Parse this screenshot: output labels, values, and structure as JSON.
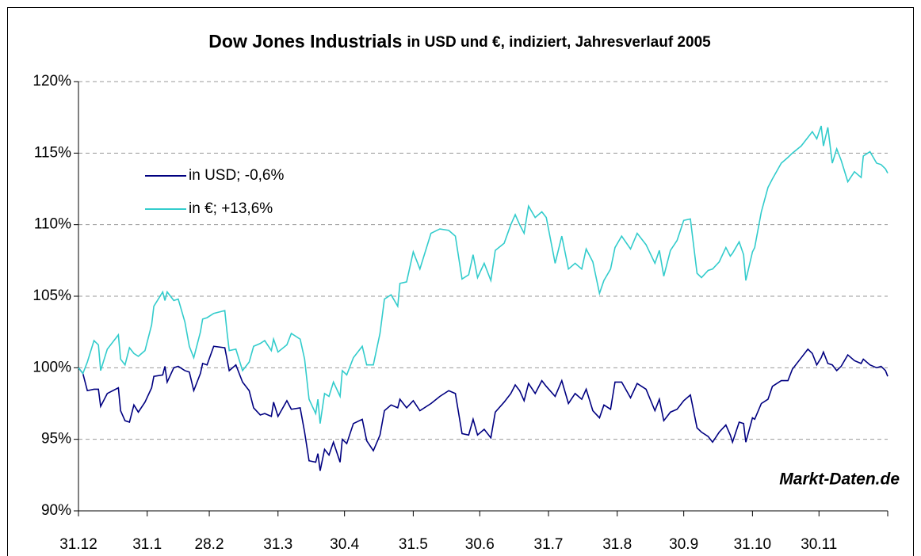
{
  "chart_data": {
    "type": "line",
    "title": "Dow Jones Industrials",
    "subtitle": "in USD und €, indiziert, Jahresverlauf 2005",
    "annotation": "Markt-Daten.de",
    "legend": "upper left",
    "grid": true,
    "xlim": [
      0,
      365
    ],
    "xticks": [
      {
        "value": 0,
        "label": "31.12"
      },
      {
        "value": 31,
        "label": "31.1"
      },
      {
        "value": 59,
        "label": "28.2"
      },
      {
        "value": 90,
        "label": "31.3"
      },
      {
        "value": 120,
        "label": "30.4"
      },
      {
        "value": 151,
        "label": "31.5"
      },
      {
        "value": 181,
        "label": "30.6"
      },
      {
        "value": 212,
        "label": "31.7"
      },
      {
        "value": 243,
        "label": "31.8"
      },
      {
        "value": 273,
        "label": "30.9"
      },
      {
        "value": 304,
        "label": "31.10"
      },
      {
        "value": 334,
        "label": "30.11"
      }
    ],
    "ylim": [
      90,
      120
    ],
    "yticks": [
      {
        "value": 90,
        "label": "90%"
      },
      {
        "value": 95,
        "label": "95%"
      },
      {
        "value": 100,
        "label": "100%"
      },
      {
        "value": 105,
        "label": "105%"
      },
      {
        "value": 110,
        "label": "110%"
      },
      {
        "value": 115,
        "label": "115%"
      },
      {
        "value": 120,
        "label": "120%"
      }
    ],
    "x": [
      0,
      2,
      4,
      7,
      9,
      10,
      13,
      18,
      19,
      21,
      23,
      25,
      27,
      30,
      33,
      34,
      38,
      39,
      40,
      43,
      45,
      48,
      50,
      52,
      55,
      56,
      58,
      61,
      66,
      67,
      68,
      71,
      74,
      77,
      79,
      82,
      84,
      87,
      88,
      90,
      94,
      96,
      100,
      102,
      104,
      107,
      108,
      109,
      111,
      113,
      115,
      118,
      119,
      121,
      124,
      128,
      130,
      133,
      136,
      138,
      141,
      144,
      145,
      148,
      151,
      154,
      159,
      163,
      167,
      170,
      173,
      176,
      178,
      180,
      183,
      186,
      188,
      192,
      195,
      197,
      199,
      201,
      203,
      206,
      209,
      211,
      215,
      218,
      221,
      224,
      227,
      229,
      232,
      235,
      237,
      240,
      242,
      245,
      249,
      252,
      256,
      260,
      262,
      264,
      267,
      270,
      273,
      276,
      279,
      281,
      284,
      286,
      289,
      292,
      294,
      295,
      298,
      300,
      301,
      304,
      305,
      308,
      311,
      313,
      317,
      320,
      322,
      326,
      329,
      331,
      333,
      335,
      336,
      338,
      340,
      342,
      344,
      347,
      350,
      353,
      354,
      357,
      360,
      362,
      364,
      365
    ],
    "series": [
      {
        "name": "in USD; -0,6%",
        "color": "#000080",
        "values": [
          100.0,
          99.6,
          98.4,
          98.5,
          98.5,
          97.3,
          98.2,
          98.6,
          97.0,
          96.3,
          96.2,
          97.4,
          96.9,
          97.6,
          98.6,
          99.4,
          99.5,
          100.1,
          99.0,
          100.0,
          100.1,
          99.8,
          99.7,
          98.4,
          99.6,
          100.3,
          100.2,
          101.5,
          101.4,
          100.6,
          99.8,
          100.2,
          99.0,
          98.4,
          97.2,
          96.7,
          96.8,
          96.6,
          97.6,
          96.6,
          97.7,
          97.1,
          97.2,
          95.5,
          93.5,
          93.4,
          94.0,
          92.8,
          94.3,
          93.9,
          94.8,
          93.4,
          95.0,
          94.7,
          96.1,
          96.4,
          94.9,
          94.2,
          95.3,
          97.0,
          97.4,
          97.2,
          97.8,
          97.2,
          97.7,
          97.0,
          97.5,
          98.0,
          98.4,
          98.2,
          95.4,
          95.3,
          96.4,
          95.3,
          95.7,
          95.1,
          96.9,
          97.6,
          98.2,
          98.8,
          98.4,
          97.7,
          98.9,
          98.2,
          99.1,
          98.7,
          98.0,
          99.1,
          97.5,
          98.2,
          97.8,
          98.5,
          97.0,
          96.5,
          97.4,
          97.1,
          99.0,
          99.0,
          97.9,
          98.9,
          98.5,
          97.0,
          97.8,
          96.3,
          96.9,
          97.1,
          97.7,
          98.1,
          95.8,
          95.5,
          95.2,
          94.8,
          95.5,
          96.0,
          95.3,
          94.8,
          96.2,
          96.1,
          94.8,
          96.5,
          96.4,
          97.5,
          97.8,
          98.7,
          99.1,
          99.1,
          99.9,
          100.7,
          101.3,
          101.0,
          100.2,
          100.7,
          101.1,
          100.3,
          100.2,
          99.8,
          100.1,
          100.9,
          100.5,
          100.3,
          100.6,
          100.2,
          100.0,
          100.1,
          99.8,
          99.4
        ]
      },
      {
        "name": "in €; +13,6%",
        "color": "#33CCCC",
        "values": [
          100.0,
          99.6,
          100.4,
          101.9,
          101.6,
          99.8,
          101.3,
          102.3,
          100.6,
          100.2,
          101.4,
          101.0,
          100.8,
          101.2,
          103.0,
          104.3,
          105.3,
          104.7,
          105.3,
          104.7,
          104.8,
          103.2,
          101.5,
          100.7,
          102.5,
          103.4,
          103.5,
          103.8,
          104.0,
          102.5,
          101.2,
          101.3,
          99.8,
          100.4,
          101.5,
          101.7,
          101.9,
          101.2,
          102.0,
          101.1,
          101.6,
          102.4,
          102.0,
          100.6,
          97.8,
          96.8,
          97.8,
          96.1,
          98.2,
          98.0,
          99.0,
          98.0,
          99.8,
          99.5,
          100.7,
          101.5,
          100.2,
          100.2,
          102.4,
          104.8,
          105.1,
          104.3,
          105.9,
          106.0,
          108.1,
          106.9,
          109.4,
          109.7,
          109.6,
          109.2,
          106.2,
          106.5,
          107.9,
          106.3,
          107.3,
          106.1,
          108.2,
          108.7,
          110.0,
          110.7,
          110.0,
          109.4,
          111.3,
          110.5,
          110.9,
          110.5,
          107.3,
          109.2,
          106.9,
          107.3,
          106.9,
          108.3,
          107.4,
          105.2,
          106.1,
          106.9,
          108.4,
          109.2,
          108.3,
          109.4,
          108.6,
          107.3,
          108.2,
          106.4,
          108.2,
          108.9,
          110.3,
          110.4,
          106.6,
          106.3,
          106.8,
          106.9,
          107.4,
          108.4,
          107.8,
          108.0,
          108.8,
          107.9,
          106.1,
          108.1,
          108.4,
          110.9,
          112.6,
          113.2,
          114.3,
          114.7,
          115.0,
          115.5,
          116.1,
          116.5,
          116.0,
          116.9,
          115.5,
          116.8,
          114.3,
          115.3,
          114.5,
          113.0,
          113.7,
          113.3,
          114.8,
          115.1,
          114.3,
          114.2,
          113.9,
          113.6
        ]
      }
    ]
  }
}
